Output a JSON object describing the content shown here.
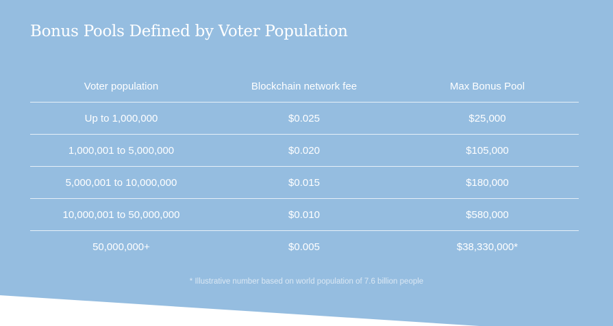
{
  "title": "Bonus Pools Defined by Voter Population",
  "table": {
    "headers": [
      "Voter population",
      "Blockchain network fee",
      "Max Bonus Pool"
    ],
    "rows": [
      [
        "Up to 1,000,000",
        "$0.025",
        "$25,000"
      ],
      [
        "1,000,001 to 5,000,000",
        "$0.020",
        "$105,000"
      ],
      [
        "5,000,001 to 10,000,000",
        "$0.015",
        "$180,000"
      ],
      [
        "10,000,001 to 50,000,000",
        "$0.010",
        "$580,000"
      ],
      [
        "50,000,000+",
        "$0.005",
        "$38,330,000*"
      ]
    ]
  },
  "footnote": "* Illustrative number based on world population of 7.6 billion people",
  "colors": {
    "panel_background": "#95bde0",
    "text": "#ffffff",
    "divider": "#e7f0f8",
    "footnote": "#dbe8f4",
    "page_background": "#ffffff"
  }
}
